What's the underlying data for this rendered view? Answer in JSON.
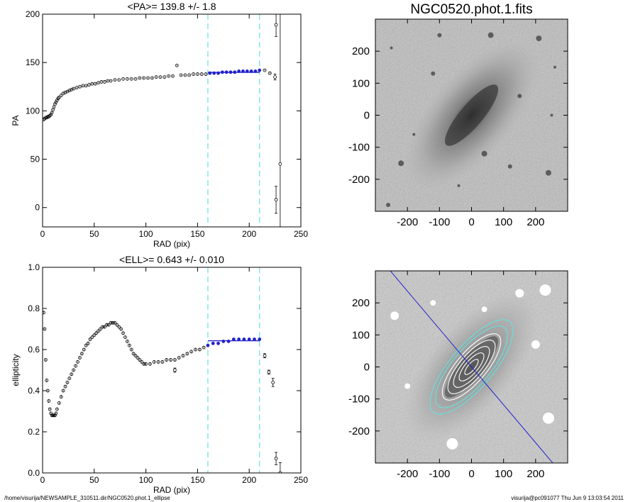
{
  "footer": {
    "left": "/home/visurija/NEWSAMPLE_310511.dir/NGC0520.phot.1_ellipse",
    "right": "visurija@pc091077  Thu Jun  9 13:03:54 2011"
  },
  "colors": {
    "cyan": "#66e0e0",
    "blue": "#2222cc",
    "marker": "#000000"
  },
  "chart_data": [
    {
      "type": "scatter",
      "title": "<PA>= 139.8 +/-   1.8",
      "xlabel": "RAD (pix)",
      "ylabel": "PA",
      "xlim": [
        0,
        250
      ],
      "ylim": [
        -20,
        200
      ],
      "xticks": [
        0,
        50,
        100,
        150,
        200,
        250
      ],
      "yticks": [
        0,
        50,
        100,
        150,
        200
      ],
      "vlines": [
        160,
        210
      ],
      "fit": {
        "x": [
          160,
          210
        ],
        "y": 139.8
      },
      "x": [
        1,
        2,
        3,
        4,
        5,
        6,
        7,
        8,
        9,
        10,
        11,
        12,
        13,
        14,
        15,
        16,
        18,
        20,
        22,
        24,
        26,
        28,
        30,
        33,
        36,
        39,
        42,
        45,
        48,
        51,
        54,
        57,
        60,
        63,
        66,
        70,
        74,
        78,
        82,
        86,
        90,
        94,
        98,
        102,
        106,
        110,
        114,
        118,
        122,
        126,
        130,
        134,
        138,
        142,
        146,
        150,
        154,
        158,
        162,
        166,
        170,
        174,
        178,
        182,
        186,
        190,
        194,
        198,
        202,
        206,
        210,
        215,
        220
      ],
      "y": [
        91,
        92,
        93,
        93,
        94,
        94,
        95,
        96,
        98,
        101,
        104,
        107,
        109,
        111,
        113,
        114,
        116,
        118,
        119,
        120,
        121,
        122,
        123,
        124,
        125,
        126,
        126,
        127,
        128,
        128,
        129,
        130,
        130,
        131,
        131,
        132,
        132,
        133,
        133,
        133,
        133,
        134,
        134,
        134,
        134,
        135,
        135,
        135,
        136,
        136,
        147,
        137,
        137,
        137,
        138,
        138,
        138,
        138,
        139,
        139,
        139,
        140,
        140,
        140,
        140,
        141,
        141,
        141,
        141,
        141,
        142,
        142,
        139
      ],
      "outliers": [
        {
          "x": 225,
          "y": 135,
          "err": 3
        },
        {
          "x": 226,
          "y": 189,
          "err": 12
        },
        {
          "x": 226,
          "y": 8,
          "err": 14
        },
        {
          "x": 230,
          "y": 45,
          "err": 200
        }
      ]
    },
    {
      "type": "scatter",
      "title": "<ELL>= 0.643 +/-  0.010",
      "xlabel": "RAD (pix)",
      "ylabel": "ellipticity",
      "xlim": [
        0,
        250
      ],
      "ylim": [
        0.0,
        1.0
      ],
      "xticks": [
        0,
        50,
        100,
        150,
        200,
        250
      ],
      "yticks": [
        0.0,
        0.2,
        0.4,
        0.6,
        0.8,
        1.0
      ],
      "vlines": [
        160,
        210
      ],
      "fit": {
        "x": [
          160,
          210
        ],
        "y": 0.643
      },
      "x": [
        1,
        2,
        3,
        4,
        5,
        6,
        7,
        8,
        9,
        10,
        11,
        12,
        13,
        14,
        16,
        18,
        20,
        22,
        24,
        26,
        28,
        30,
        32,
        34,
        36,
        38,
        40,
        42,
        44,
        46,
        48,
        50,
        52,
        54,
        56,
        58,
        60,
        62,
        64,
        66,
        68,
        70,
        72,
        74,
        76,
        78,
        80,
        82,
        84,
        86,
        88,
        90,
        92,
        94,
        96,
        98,
        100,
        104,
        108,
        112,
        116,
        120,
        124,
        128,
        132,
        136,
        140,
        144,
        148,
        152,
        156,
        160,
        165,
        170,
        175,
        180,
        185,
        190,
        195,
        200,
        205,
        210
      ],
      "y": [
        0.78,
        0.7,
        0.55,
        0.45,
        0.4,
        0.35,
        0.31,
        0.29,
        0.28,
        0.28,
        0.28,
        0.28,
        0.29,
        0.31,
        0.34,
        0.37,
        0.4,
        0.42,
        0.44,
        0.46,
        0.48,
        0.5,
        0.52,
        0.54,
        0.56,
        0.58,
        0.6,
        0.62,
        0.63,
        0.65,
        0.66,
        0.67,
        0.68,
        0.69,
        0.7,
        0.71,
        0.71,
        0.72,
        0.72,
        0.73,
        0.73,
        0.73,
        0.72,
        0.71,
        0.7,
        0.68,
        0.66,
        0.64,
        0.62,
        0.6,
        0.58,
        0.57,
        0.56,
        0.55,
        0.54,
        0.53,
        0.53,
        0.53,
        0.54,
        0.54,
        0.54,
        0.55,
        0.55,
        0.55,
        0.56,
        0.57,
        0.58,
        0.59,
        0.6,
        0.6,
        0.61,
        0.62,
        0.63,
        0.63,
        0.64,
        0.64,
        0.65,
        0.65,
        0.65,
        0.65,
        0.65,
        0.65
      ],
      "outliers": [
        {
          "x": 128,
          "y": 0.5,
          "err": 0.01
        },
        {
          "x": 215,
          "y": 0.57,
          "err": 0.01
        },
        {
          "x": 219,
          "y": 0.49,
          "err": 0.01
        },
        {
          "x": 223,
          "y": 0.44,
          "err": 0.02
        },
        {
          "x": 226,
          "y": 0.07,
          "err": 0.03
        },
        {
          "x": 230,
          "y": 0.0,
          "err": 0.05
        }
      ]
    },
    {
      "type": "image",
      "title": "NGC0520.phot.1.fits",
      "xlim": [
        -300,
        300
      ],
      "ylim": [
        -300,
        300
      ],
      "xticks": [
        -200,
        -100,
        0,
        100,
        200
      ],
      "yticks": [
        -200,
        -100,
        0,
        100,
        200
      ]
    },
    {
      "type": "image",
      "title": "",
      "xlim": [
        -300,
        300
      ],
      "ylim": [
        -300,
        300
      ],
      "xticks": [
        -200,
        -100,
        0,
        100,
        200
      ],
      "yticks": [
        -200,
        -100,
        0,
        100,
        200
      ],
      "major_axis_pa_deg": 139.8,
      "ellipse_radii": [
        30,
        55,
        80,
        105,
        130,
        160,
        185
      ]
    }
  ]
}
